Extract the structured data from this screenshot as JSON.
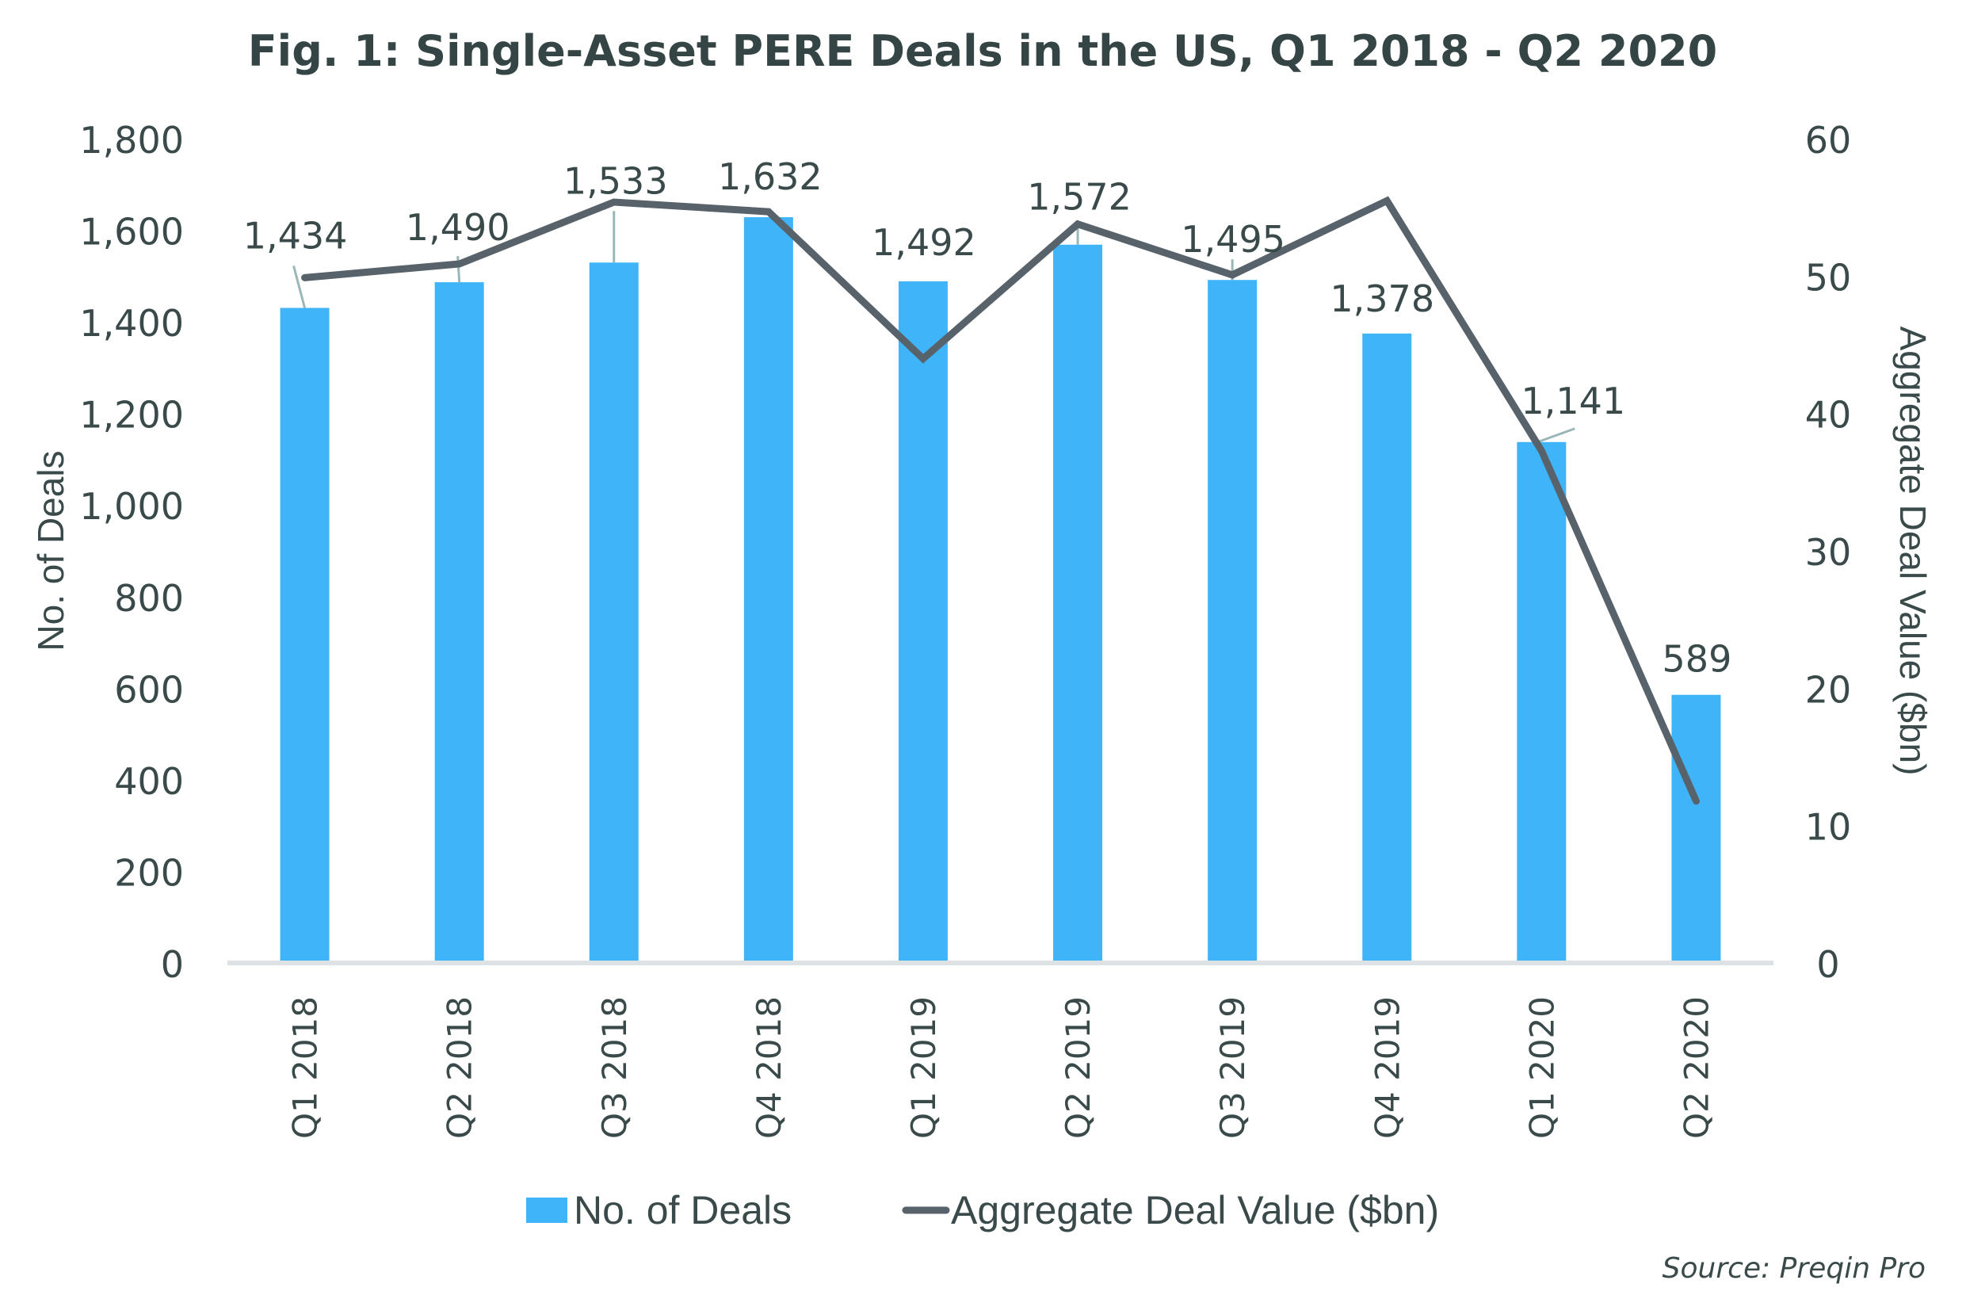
{
  "chart_data": {
    "type": "bar",
    "title": "Fig. 1: Single-Asset PERE Deals in the US, Q1 2018 - Q2 2020",
    "categories": [
      "Q1 2018",
      "Q2 2018",
      "Q3 2018",
      "Q4 2018",
      "Q1 2019",
      "Q2 2019",
      "Q3 2019",
      "Q4 2019",
      "Q1 2020",
      "Q2 2020"
    ],
    "series": [
      {
        "name": "No. of Deals",
        "type": "bar",
        "axis": "left",
        "color": "#40b4f8",
        "values": [
          1434,
          1490,
          1533,
          1632,
          1492,
          1572,
          1495,
          1378,
          1141,
          589
        ],
        "labels": [
          "1,434",
          "1,490",
          "1,533",
          "1,632",
          "1,492",
          "1,572",
          "1,495",
          "1,378",
          "1,141",
          "589"
        ]
      },
      {
        "name": "Aggregate Deal Value ($bn)",
        "type": "line",
        "axis": "right",
        "color": "#58626a",
        "values": [
          50.0,
          51.0,
          55.5,
          54.8,
          44.1,
          53.9,
          50.2,
          55.6,
          37.4,
          11.9
        ]
      }
    ],
    "ylabel": "No. of Deals",
    "ylim": [
      0,
      1800
    ],
    "yticks": [
      0,
      200,
      400,
      600,
      800,
      1000,
      1200,
      1400,
      1600,
      1800
    ],
    "ytick_labels": [
      "0",
      "200",
      "400",
      "600",
      "800",
      "1,000",
      "1,200",
      "1,400",
      "1,600",
      "1,800"
    ],
    "y2label": "Aggregate Deal Value ($bn)",
    "y2lim": [
      0,
      60
    ],
    "y2ticks": [
      0,
      10,
      20,
      30,
      40,
      50,
      60
    ],
    "y2tick_labels": [
      "0",
      "10",
      "20",
      "30",
      "40",
      "50",
      "60"
    ],
    "xlabel": "",
    "grid": false,
    "legend_position": "bottom-center",
    "legend": [
      "No. of Deals",
      "Aggregate Deal Value ($bn)"
    ],
    "source": "Source: Preqin Pro"
  }
}
